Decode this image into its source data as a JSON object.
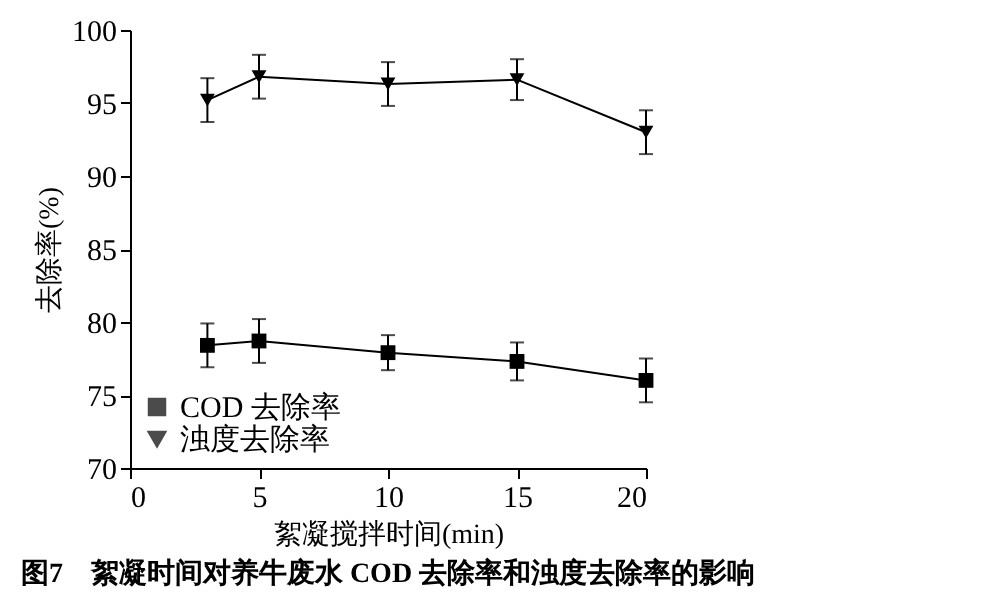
{
  "chart_data": {
    "type": "line",
    "xlabel": "絮凝搅拌时间(min)",
    "ylabel": "去除率(%)",
    "annotations": [
      "图7　絮凝时间对养牛废水 COD 去除率和浊度去除率的影响"
    ],
    "x": [
      3,
      5,
      10,
      15,
      20
    ],
    "series": [
      {
        "name": "COD 去除率",
        "color": "#000000",
        "marker": "square",
        "values": [
          78.4,
          78.7,
          77.9,
          77.3,
          76.0
        ],
        "errors": [
          1.5,
          1.5,
          1.2,
          1.3,
          1.5
        ]
      },
      {
        "name": "浊度去除率",
        "color": "#000000",
        "marker": "triangle",
        "values": [
          95.2,
          96.8,
          96.3,
          96.6,
          93.0
        ],
        "errors": [
          1.5,
          1.5,
          1.5,
          1.4,
          1.5
        ]
      }
    ],
    "xlim": [
      0,
      20
    ],
    "xticks": [
      0,
      5,
      10,
      15,
      20
    ],
    "ylim": [
      70,
      100
    ],
    "yticks": [
      70,
      75,
      80,
      85,
      90,
      95,
      100
    ],
    "grid": false,
    "legend": "bottom left",
    "line_style": "solid"
  }
}
